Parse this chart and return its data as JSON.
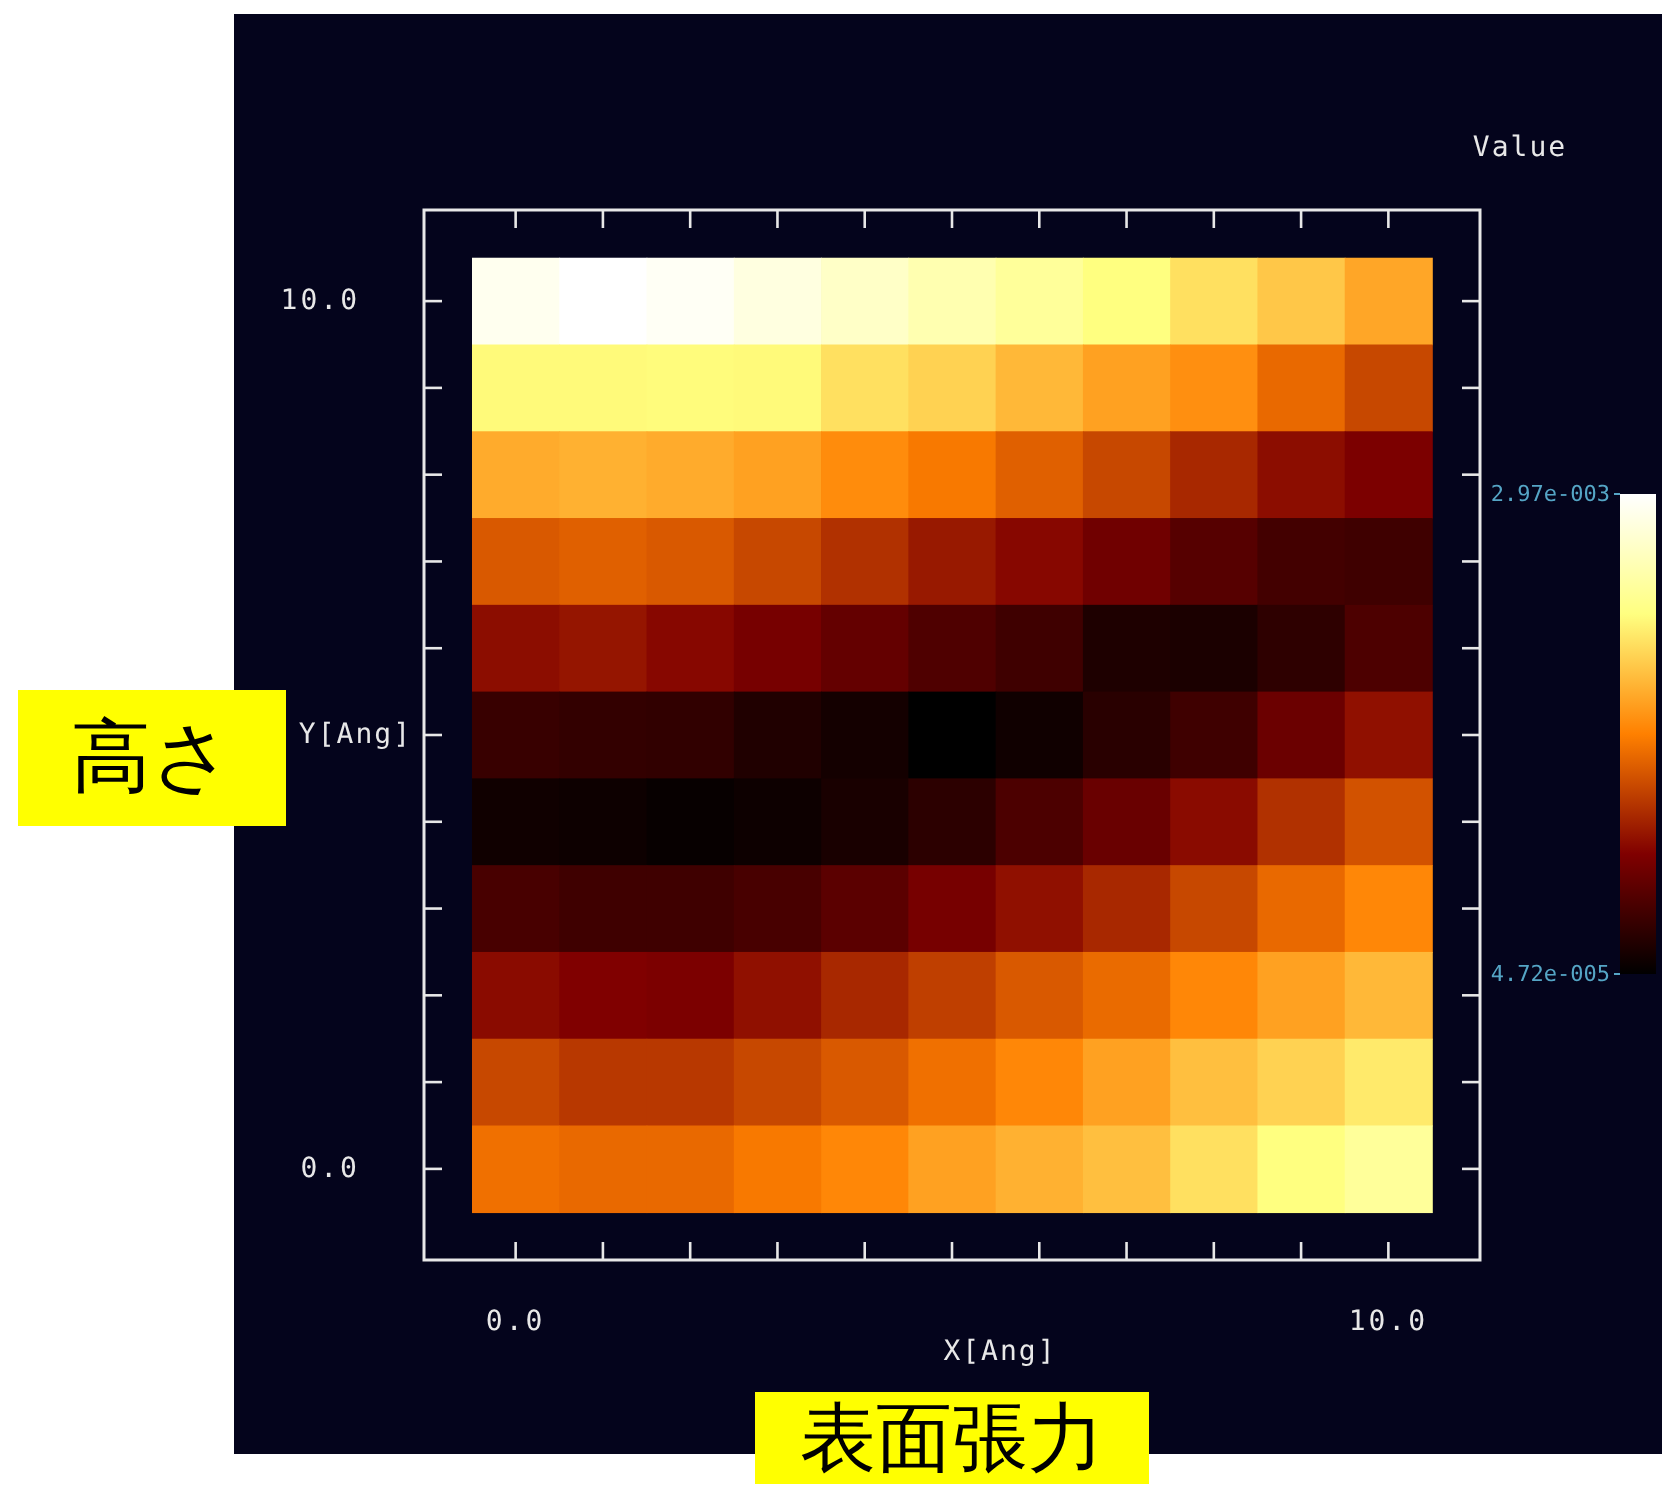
{
  "chart_data": {
    "type": "heatmap",
    "xlabel": "X[Ang]",
    "ylabel": "Y[Ang]",
    "clabel": "Value",
    "x": [
      0,
      1,
      2,
      3,
      4,
      5,
      6,
      7,
      8,
      9,
      10
    ],
    "y": [
      10,
      9,
      8,
      7,
      6,
      5,
      4,
      3,
      2,
      1,
      0
    ],
    "cells": [
      [
        0.00288,
        0.00297,
        0.00291,
        0.00279,
        0.00265,
        0.00252,
        0.00239,
        0.00224,
        0.00206,
        0.00192,
        0.00173
      ],
      [
        0.00221,
        0.00221,
        0.00222,
        0.00221,
        0.00206,
        0.00198,
        0.00183,
        0.0017,
        0.0016,
        0.00138,
        0.00119
      ],
      [
        0.00176,
        0.00179,
        0.00176,
        0.0017,
        0.00158,
        0.00147,
        0.00133,
        0.00119,
        0.00101,
        0.00085,
        0.00076
      ],
      [
        0.00129,
        0.00133,
        0.00129,
        0.00119,
        0.00106,
        0.00092,
        0.00082,
        0.00069,
        0.00054,
        0.00043,
        0.00041
      ],
      [
        0.00085,
        0.0009,
        0.00082,
        0.00073,
        0.00062,
        0.0005,
        0.00041,
        0.00022,
        0.0002,
        0.00031,
        0.00049
      ],
      [
        0.00037,
        0.00034,
        0.00033,
        0.00023,
        0.00016,
        4.72e-05,
        0.00014,
        0.00028,
        0.00041,
        0.00066,
        0.00087
      ],
      [
        0.00014,
        0.00012,
        9e-05,
        0.00012,
        0.00019,
        0.0003,
        0.00048,
        0.00065,
        0.00084,
        0.00106,
        0.00125
      ],
      [
        0.00046,
        0.00041,
        0.00041,
        0.00046,
        0.00057,
        0.00073,
        0.00087,
        0.00101,
        0.00119,
        0.00138,
        0.00155
      ],
      [
        0.00084,
        0.00078,
        0.00076,
        0.00087,
        0.00101,
        0.00114,
        0.00129,
        0.00139,
        0.00155,
        0.0017,
        0.00183
      ],
      [
        0.00119,
        0.0011,
        0.0011,
        0.00119,
        0.00129,
        0.00142,
        0.00155,
        0.0017,
        0.00187,
        0.00198,
        0.00212
      ],
      [
        0.00142,
        0.00138,
        0.00138,
        0.00147,
        0.00155,
        0.0017,
        0.00179,
        0.00187,
        0.00206,
        0.00224,
        0.00239
      ]
    ],
    "xlim": [
      -1.05,
      11.05
    ],
    "ylim": [
      -1.05,
      11.05
    ],
    "xticks": [
      {
        "value": 0,
        "label": "0.0"
      },
      {
        "value": 1,
        "label": null
      },
      {
        "value": 2,
        "label": null
      },
      {
        "value": 3,
        "label": null
      },
      {
        "value": 4,
        "label": null
      },
      {
        "value": 5,
        "label": null
      },
      {
        "value": 6,
        "label": null
      },
      {
        "value": 7,
        "label": null
      },
      {
        "value": 8,
        "label": null
      },
      {
        "value": 9,
        "label": null
      },
      {
        "value": 10,
        "label": "10.0"
      }
    ],
    "yticks": [
      {
        "value": 0,
        "label": "0.0"
      },
      {
        "value": 1,
        "label": null
      },
      {
        "value": 2,
        "label": null
      },
      {
        "value": 3,
        "label": null
      },
      {
        "value": 4,
        "label": null
      },
      {
        "value": 5,
        "label": null
      },
      {
        "value": 6,
        "label": null
      },
      {
        "value": 7,
        "label": null
      },
      {
        "value": 8,
        "label": null
      },
      {
        "value": 9,
        "label": null
      },
      {
        "value": 10,
        "label": "10.0"
      }
    ],
    "clim": [
      4.72e-05,
      0.00297
    ],
    "cticks": [
      {
        "value": 0.00297,
        "label": "2.97e-003"
      },
      {
        "value": 4.72e-05,
        "label": "4.72e-005"
      }
    ],
    "annotations": [
      "高さ",
      "表面張力"
    ]
  }
}
